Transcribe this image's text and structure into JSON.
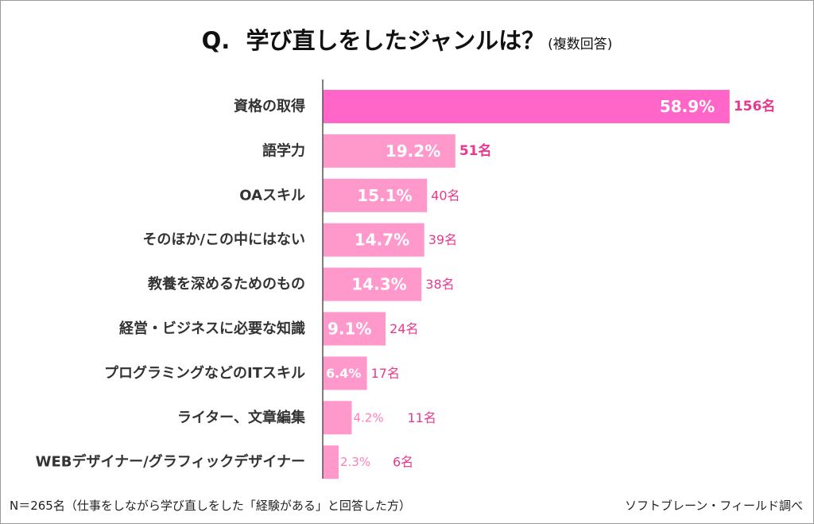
{
  "title": {
    "main": "Q.  学び直しをしたジャンルは？",
    "note": "(複数回答)"
  },
  "chart_data": {
    "type": "bar",
    "orientation": "horizontal",
    "categories": [
      "資格の取得",
      "語学力",
      "OAスキル",
      "そのほか/この中にはない",
      "教養を深めるためのもの",
      "経営・ビジネスに必要な知識",
      "プログラミングなどのITスキル",
      "ライター、文章編集",
      "WEBデザイナー/グラフィックデザイナー"
    ],
    "values": [
      58.9,
      19.2,
      15.1,
      14.7,
      14.3,
      9.1,
      6.4,
      4.2,
      2.3
    ],
    "value_labels": [
      "58.9%",
      "19.2%",
      "15.1%",
      "14.7%",
      "14.3%",
      "9.1%",
      "6.4%",
      "4.2%",
      "2.3%"
    ],
    "counts": [
      "156名",
      "51名",
      "40名",
      "39名",
      "38名",
      "24名",
      "17名",
      "11名",
      "6名"
    ],
    "unit": "%",
    "xlim": [
      0,
      60
    ],
    "grid": false,
    "colors": {
      "highlight": "#ff66c8",
      "bar": "#ff99cc",
      "count": "#e8398e",
      "small_label": "#ff7dbd",
      "axis": "#555555"
    }
  },
  "footer": {
    "note": "N＝265名（仕事をしながら学び直しをした「経験がある」と回答した方）",
    "source": "ソフトブレーン・フィールド調べ"
  }
}
